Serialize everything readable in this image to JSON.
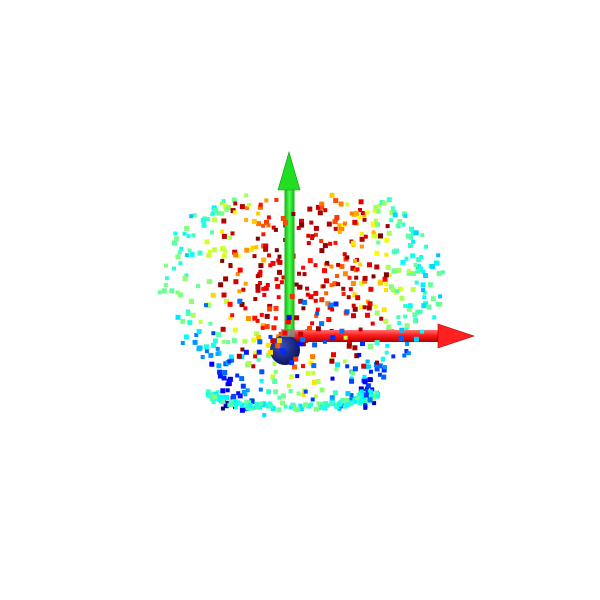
{
  "viewer": {
    "background": "#ffffff",
    "point_cloud": {
      "colormap": "jet",
      "colormap_stops": [
        "#00007f",
        "#0000ff",
        "#0080ff",
        "#00ffff",
        "#80ff80",
        "#ffff00",
        "#ff8000",
        "#ff0000",
        "#7f0000"
      ]
    },
    "axes": {
      "x": {
        "color": "#ff1a1a",
        "icon": "x-axis-arrow-icon"
      },
      "y": {
        "color": "#1aff1a",
        "icon": "y-axis-arrow-icon"
      },
      "origin": {
        "color": "#0b1a6e",
        "icon": "origin-sphere-icon"
      }
    }
  }
}
